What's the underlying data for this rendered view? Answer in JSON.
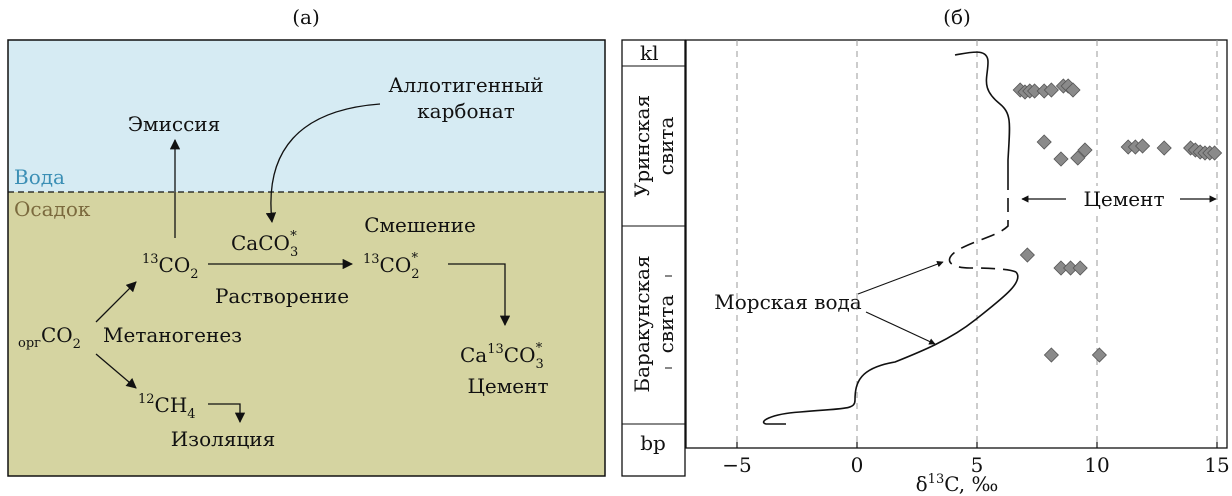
{
  "panel_a": {
    "label": "(а)",
    "water": "Вода",
    "sediment": "Осадок",
    "emission": "Эмиссия",
    "allothigenic_line1": "Аллотигенный",
    "allothigenic_line2": "карбонат",
    "co2_13": {
      "sup": "13",
      "base": "CO",
      "sub": "2"
    },
    "caco3": {
      "base": "CaCO",
      "sub": "3",
      "sup": "*"
    },
    "mixing": "Смешение",
    "co2_13_star": {
      "sup": "13",
      "base": "CO",
      "sub": "2",
      "star": "*"
    },
    "dissolution": "Растворение",
    "org_co2": {
      "pre": "орг",
      "base": "CO",
      "sub": "2"
    },
    "methanogenesis": "Метаногенез",
    "ca13co3": {
      "ca": "Ca",
      "sup": "13",
      "base": "CO",
      "sub": "3",
      "star": "*"
    },
    "cement": "Цемент",
    "ch4_12": {
      "sup": "12",
      "base": "CH",
      "sub": "4"
    },
    "isolation": "Изоляция",
    "colors": {
      "water": "#d6ebf3",
      "sediment": "#d5d4a1",
      "water_text": "#3b8fb5",
      "sediment_text": "#7b6a3e"
    }
  },
  "panel_b": {
    "label": "(б)",
    "strat": {
      "kl": "kl",
      "urin_line1": "Уринская",
      "urin_line2": "свита",
      "barak_line1": "Баракунская",
      "barak_line2": "свита",
      "bp": "bp"
    },
    "seawater_label": "Морская вода",
    "cement_label": "Цемент",
    "xaxis": {
      "prefix": "δ",
      "sup": "13",
      "suffix": "C, ‰"
    }
  },
  "chart_data": {
    "type": "scatter",
    "x_ticks": [
      -5,
      0,
      5,
      10,
      15
    ],
    "xlim": [
      -7,
      15.5
    ],
    "xlabel": "δ13C, ‰",
    "grid": "vertical dashed at -5, 0, 5, 10, 15",
    "series": [
      {
        "name": "Цемент",
        "marker": "diamond",
        "color": "#8a8a8a",
        "points_x": [
          6.8,
          7.0,
          7.2,
          7.4,
          7.8,
          8.1,
          8.6,
          8.8,
          9.0,
          7.8,
          8.5,
          9.2,
          9.5,
          11.3,
          11.6,
          11.9,
          12.8,
          13.9,
          14.1,
          14.3,
          14.5,
          14.7,
          14.9,
          7.1,
          8.5,
          8.9,
          9.3,
          8.1,
          10.1
        ],
        "points_level": [
          "upper",
          "upper",
          "upper",
          "upper",
          "upper",
          "upper",
          "upper",
          "upper",
          "upper",
          "middle-upper",
          "middle-upper",
          "middle-upper",
          "middle-upper",
          "middle-upper",
          "middle-upper",
          "middle-upper",
          "middle-upper",
          "middle-upper",
          "middle-upper",
          "middle-upper",
          "middle-upper",
          "middle-upper",
          "middle-upper",
          "lower",
          "lower",
          "lower",
          "lower",
          "bottom",
          "bottom"
        ]
      },
      {
        "name": "Морская вода",
        "style": "solid with dashed gap",
        "x_range": [
          -4,
          8.4
        ]
      }
    ]
  }
}
